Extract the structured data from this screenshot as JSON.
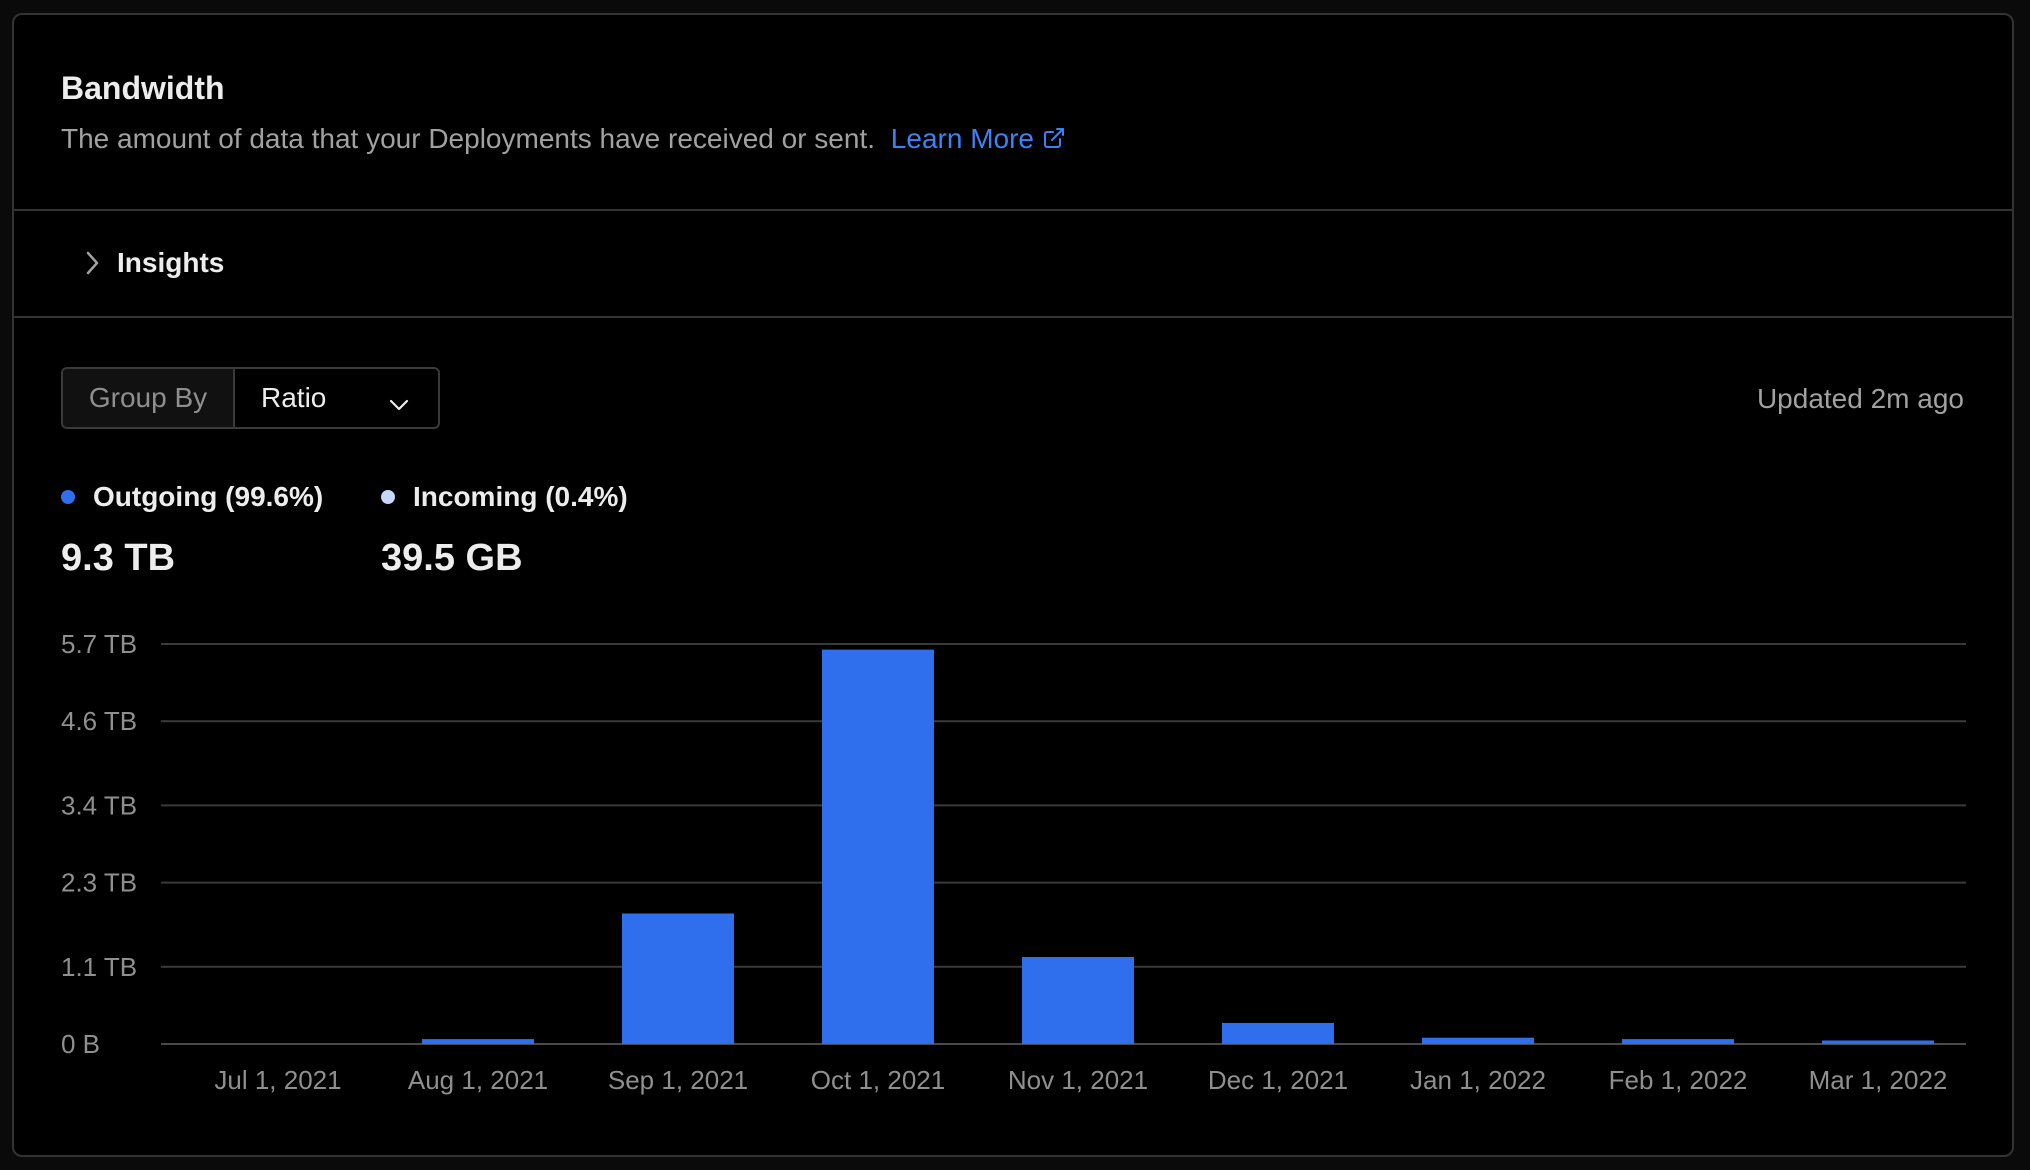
{
  "header": {
    "title": "Bandwidth",
    "subtitle": "The amount of data that your Deployments have received or sent.",
    "learn_more": "Learn More",
    "link_icon": "external-link-icon"
  },
  "insights": {
    "label": "Insights",
    "icon": "chevron-right-icon"
  },
  "controls": {
    "group_by_label": "Group By",
    "group_by_value": "Ratio",
    "updated": "Updated 2m ago"
  },
  "legend": [
    {
      "label": "Outgoing (99.6%)",
      "total": "9.3 TB",
      "color": "#2f6fed"
    },
    {
      "label": "Incoming (0.4%)",
      "total": "39.5 GB",
      "color": "#c7d7fb"
    }
  ],
  "chart_data": {
    "type": "bar",
    "categories": [
      "Jul 1, 2021",
      "Aug 1, 2021",
      "Sep 1, 2021",
      "Oct 1, 2021",
      "Nov 1, 2021",
      "Dec 1, 2021",
      "Jan 1, 2022",
      "Feb 1, 2022",
      "Mar 1, 2022"
    ],
    "series": [
      {
        "name": "Outgoing (99.6%)",
        "values": [
          0,
          0.07,
          1.86,
          5.62,
          1.24,
          0.3,
          0.09,
          0.07,
          0.05
        ],
        "color": "#2f6fed"
      }
    ],
    "y_ticks": [
      0,
      1.1,
      2.3,
      3.4,
      4.6,
      5.7
    ],
    "y_tick_labels": [
      "0 B",
      "1.1 TB",
      "2.3 TB",
      "3.4 TB",
      "4.6 TB",
      "5.7 TB"
    ],
    "ylim": [
      0,
      5.7
    ],
    "grid": true,
    "unit": "TB"
  }
}
